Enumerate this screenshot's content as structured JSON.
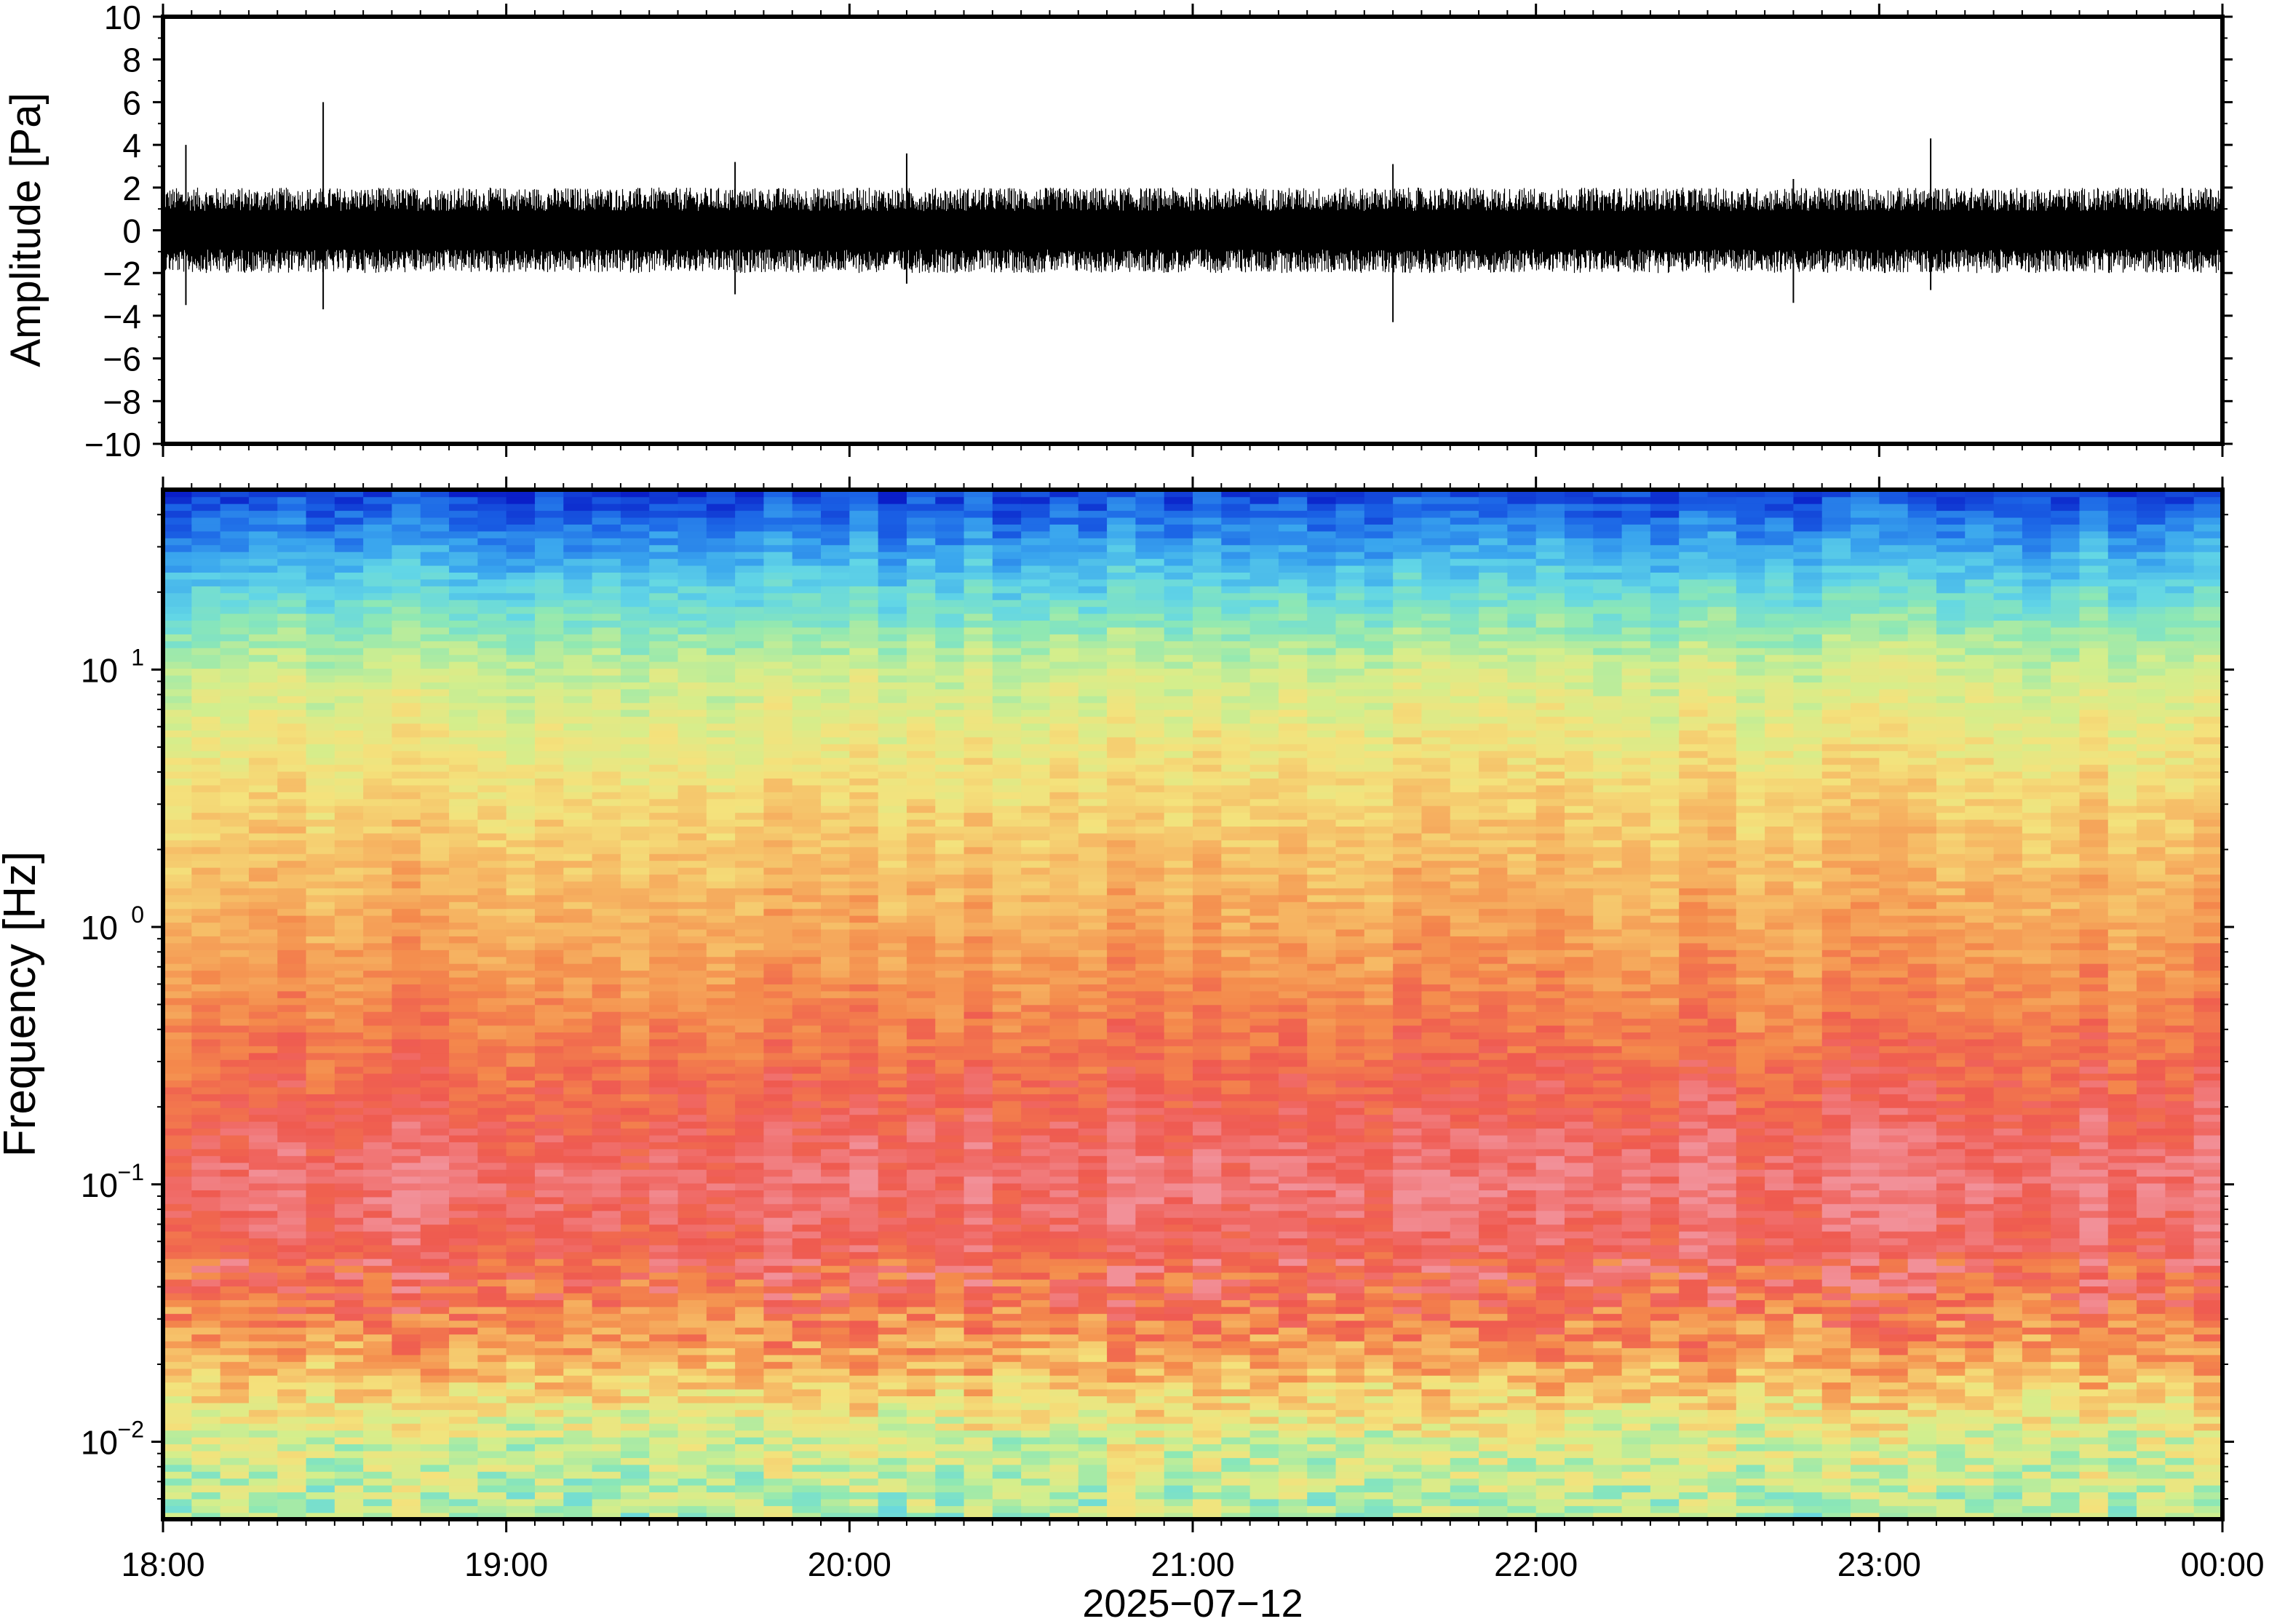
{
  "chart_data": [
    {
      "type": "line",
      "panel": "waveform",
      "ylabel": "Amplitude [Pa]",
      "ylim": [
        -10,
        10
      ],
      "yticks": [
        -10,
        -8,
        -6,
        -4,
        -2,
        0,
        2,
        4,
        6,
        8,
        10
      ],
      "ytick_labels": [
        "−10",
        "−8",
        "−6",
        "−4",
        "−2",
        "0",
        "2",
        "4",
        "6",
        "8",
        "10"
      ],
      "xlim": [
        "18:00",
        "00:00"
      ],
      "grid": false,
      "series": [
        {
          "color": "#000000",
          "typical_envelope_pa": [
            -2,
            2
          ],
          "bursts": [
            {
              "time": "18:04",
              "min": -3.5,
              "max": 4.0
            },
            {
              "time": "18:28",
              "min": -3.7,
              "max": 6.0
            },
            {
              "time": "19:40",
              "min": -3.0,
              "max": 3.2
            },
            {
              "time": "20:10",
              "min": -2.5,
              "max": 3.6
            },
            {
              "time": "21:35",
              "min": -4.3,
              "max": 3.1
            },
            {
              "time": "22:45",
              "min": -3.4,
              "max": 2.4
            },
            {
              "time": "23:09",
              "min": -2.8,
              "max": 4.3
            }
          ]
        }
      ]
    },
    {
      "type": "heatmap",
      "panel": "spectrogram",
      "ylabel": "Frequency [Hz]",
      "yscale": "log",
      "ylim": [
        0.005,
        50
      ],
      "yticks": [
        0.01,
        0.1,
        1,
        10
      ],
      "ytick_labels": [
        {
          "base": "10",
          "exp": "−2"
        },
        {
          "base": "10",
          "exp": "−1"
        },
        {
          "base": "10",
          "exp": "0"
        },
        {
          "base": "10",
          "exp": "1"
        }
      ],
      "xlim": [
        "18:00",
        "00:00"
      ],
      "colormap": [
        "#0a1fc8",
        "#1b64e6",
        "#3aa6ee",
        "#62d6e6",
        "#8ee8b4",
        "#d4ee8c",
        "#f4e27c",
        "#f6b864",
        "#f48a4c",
        "#ef5a50",
        "#f29098"
      ],
      "relative_power_profile": [
        {
          "freq_hz": 0.005,
          "level": 0.45
        },
        {
          "freq_hz": 0.01,
          "level": 0.52
        },
        {
          "freq_hz": 0.02,
          "level": 0.72
        },
        {
          "freq_hz": 0.04,
          "level": 0.88
        },
        {
          "freq_hz": 0.1,
          "level": 0.96
        },
        {
          "freq_hz": 0.3,
          "level": 0.86
        },
        {
          "freq_hz": 1,
          "level": 0.74
        },
        {
          "freq_hz": 3,
          "level": 0.64
        },
        {
          "freq_hz": 10,
          "level": 0.5
        },
        {
          "freq_hz": 20,
          "level": 0.32
        },
        {
          "freq_hz": 50,
          "level": 0.05
        }
      ]
    }
  ],
  "x_axis": {
    "tick_labels": [
      "18:00",
      "19:00",
      "20:00",
      "21:00",
      "22:00",
      "23:00",
      "00:00"
    ],
    "date_label": "2025−07−12"
  }
}
